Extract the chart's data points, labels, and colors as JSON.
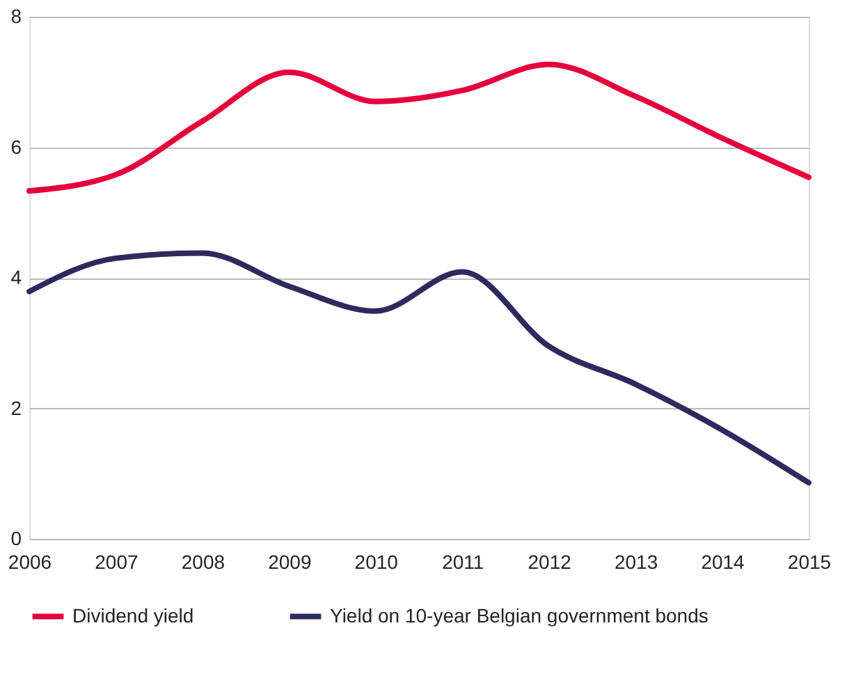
{
  "chart_data": {
    "type": "line",
    "x": [
      2006,
      2007,
      2008,
      2009,
      2010,
      2011,
      2012,
      2013,
      2014,
      2015
    ],
    "series": [
      {
        "name": "Dividend yield",
        "color": "#e4003b",
        "values": [
          5.33,
          5.58,
          6.4,
          7.15,
          6.7,
          6.87,
          7.27,
          6.78,
          6.14,
          5.54
        ]
      },
      {
        "name": "Yield on 10-year Belgian government bonds",
        "color": "#2e2a5e",
        "values": [
          3.79,
          4.3,
          4.38,
          3.87,
          3.49,
          4.09,
          2.95,
          2.37,
          1.67,
          0.86
        ]
      }
    ],
    "xlim": [
      2006,
      2015
    ],
    "xticks": [
      2006,
      2007,
      2008,
      2009,
      2010,
      2011,
      2012,
      2013,
      2014,
      2015
    ],
    "ylim": [
      0,
      8
    ],
    "yticks": [
      0,
      2,
      4,
      6,
      8
    ],
    "grid": "y",
    "legend": "bottom",
    "marker": "none",
    "line_style": "solid"
  }
}
